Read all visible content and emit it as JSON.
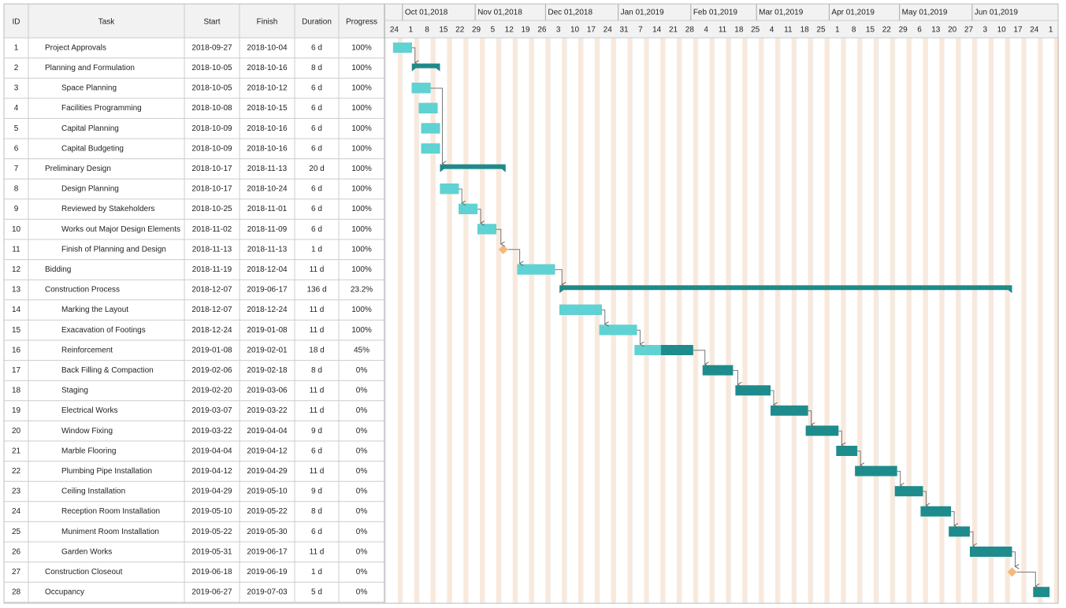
{
  "table": {
    "columns": [
      "ID",
      "Task",
      "Start",
      "Finish",
      "Duration",
      "Progress"
    ],
    "rows": [
      [
        "1",
        "Project Approvals",
        "2018-09-27",
        "2018-10-04",
        "6 d",
        "100%"
      ],
      [
        "2",
        "Planning and Formulation",
        "2018-10-05",
        "2018-10-16",
        "8 d",
        "100%"
      ],
      [
        "3",
        "Space Planning",
        "2018-10-05",
        "2018-10-12",
        "6 d",
        "100%"
      ],
      [
        "4",
        "Facilities Programming",
        "2018-10-08",
        "2018-10-15",
        "6 d",
        "100%"
      ],
      [
        "5",
        "Capital Planning",
        "2018-10-09",
        "2018-10-16",
        "6 d",
        "100%"
      ],
      [
        "6",
        "Capital Budgeting",
        "2018-10-09",
        "2018-10-16",
        "6 d",
        "100%"
      ],
      [
        "7",
        "Preliminary Design",
        "2018-10-17",
        "2018-11-13",
        "20 d",
        "100%"
      ],
      [
        "8",
        "Design Planning",
        "2018-10-17",
        "2018-10-24",
        "6 d",
        "100%"
      ],
      [
        "9",
        "Reviewed by Stakeholders",
        "2018-10-25",
        "2018-11-01",
        "6 d",
        "100%"
      ],
      [
        "10",
        "Works out Major Design Elements",
        "2018-11-02",
        "2018-11-09",
        "6 d",
        "100%"
      ],
      [
        "11",
        "Finish of Planning and Design",
        "2018-11-13",
        "2018-11-13",
        "1 d",
        "100%"
      ],
      [
        "12",
        "Bidding",
        "2018-11-19",
        "2018-12-04",
        "11 d",
        "100%"
      ],
      [
        "13",
        "Construction Process",
        "2018-12-07",
        "2019-06-17",
        "136 d",
        "23.2%"
      ],
      [
        "14",
        "Marking the Layout",
        "2018-12-07",
        "2018-12-24",
        "11 d",
        "100%"
      ],
      [
        "15",
        "Exacavation of Footings",
        "2018-12-24",
        "2019-01-08",
        "11 d",
        "100%"
      ],
      [
        "16",
        "Reinforcement",
        "2019-01-08",
        "2019-02-01",
        "18 d",
        "45%"
      ],
      [
        "17",
        "Back Filling & Compaction",
        "2019-02-06",
        "2019-02-18",
        "8 d",
        "0%"
      ],
      [
        "18",
        "Staging",
        "2019-02-20",
        "2019-03-06",
        "11 d",
        "0%"
      ],
      [
        "19",
        "Electrical Works",
        "2019-03-07",
        "2019-03-22",
        "11 d",
        "0%"
      ],
      [
        "20",
        "Window Fixing",
        "2019-03-22",
        "2019-04-04",
        "9 d",
        "0%"
      ],
      [
        "21",
        "Marble Flooring",
        "2019-04-04",
        "2019-04-12",
        "6 d",
        "0%"
      ],
      [
        "22",
        "Plumbing Pipe Installation",
        "2019-04-12",
        "2019-04-29",
        "11 d",
        "0%"
      ],
      [
        "23",
        "Ceiling Installation",
        "2019-04-29",
        "2019-05-10",
        "9 d",
        "0%"
      ],
      [
        "24",
        "Reception Room Installation",
        "2019-05-10",
        "2019-05-22",
        "8 d",
        "0%"
      ],
      [
        "25",
        "Muniment Room Installation",
        "2019-05-22",
        "2019-05-30",
        "6 d",
        "0%"
      ],
      [
        "26",
        "Garden Works",
        "2019-05-31",
        "2019-06-17",
        "11 d",
        "0%"
      ],
      [
        "27",
        "Construction Closeout",
        "2019-06-18",
        "2019-06-19",
        "1 d",
        "0%"
      ],
      [
        "28",
        "Occupancy",
        "2019-06-27",
        "2019-07-03",
        "5 d",
        "0%"
      ]
    ]
  },
  "timeline": {
    "months": [
      "Oct 01,2018",
      "Nov 01,2018",
      "Dec 01,2018",
      "Jan 01,2019",
      "Feb 01,2019",
      "Mar 01,2019",
      "Apr 01,2019",
      "May 01,2019",
      "Jun 01,2019"
    ],
    "weeks": [
      "24",
      "1",
      "8",
      "15",
      "22",
      "29",
      "5",
      "12",
      "19",
      "26",
      "3",
      "10",
      "17",
      "24",
      "31",
      "7",
      "14",
      "21",
      "28",
      "4",
      "11",
      "18",
      "25",
      "4",
      "11",
      "18",
      "25",
      "1",
      "8",
      "15",
      "22",
      "29",
      "6",
      "13",
      "20",
      "27",
      "3",
      "10",
      "17",
      "24",
      "1"
    ]
  }
}
